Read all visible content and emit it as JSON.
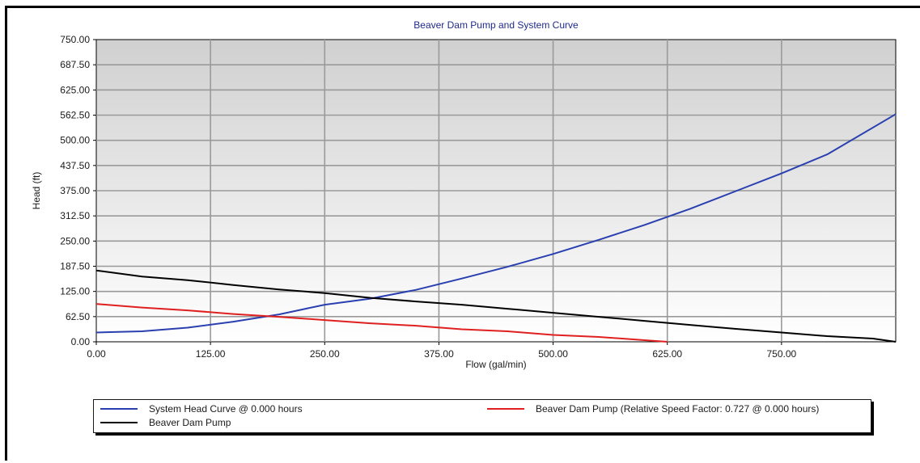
{
  "chart_data": {
    "type": "line",
    "title": "Beaver Dam Pump and System Curve",
    "xlabel": "Flow (gal/min)",
    "ylabel": "Head (ft)",
    "xlim": [
      0,
      875
    ],
    "ylim": [
      0,
      750
    ],
    "x_ticks": [
      "0.00",
      "125.00",
      "250.00",
      "375.00",
      "500.00",
      "625.00",
      "750.00"
    ],
    "x_tick_values": [
      0,
      125,
      250,
      375,
      500,
      625,
      750
    ],
    "y_ticks": [
      "0.00",
      "62.50",
      "125.00",
      "187.50",
      "250.00",
      "312.50",
      "375.00",
      "437.50",
      "500.00",
      "562.50",
      "625.00",
      "687.50",
      "750.00"
    ],
    "y_tick_values": [
      0,
      62.5,
      125,
      187.5,
      250,
      312.5,
      375,
      437.5,
      500,
      562.5,
      625,
      687.5,
      750
    ],
    "grid": true,
    "legend_position": "bottom",
    "series": [
      {
        "name": "System Head Curve @ 0.000 hours",
        "color": "#2a3fb0",
        "x": [
          0,
          50,
          100,
          150,
          200,
          250,
          300,
          350,
          400,
          450,
          500,
          550,
          600,
          650,
          700,
          750,
          800,
          875
        ],
        "y": [
          23,
          26,
          35,
          50,
          68,
          92,
          107,
          129,
          157,
          186,
          218,
          253,
          290,
          330,
          374,
          418,
          465,
          565
        ]
      },
      {
        "name": "Beaver Dam Pump (Relative Speed Factor:  0.727 @ 0.000 hours)",
        "color": "#e02020",
        "x": [
          0,
          50,
          100,
          150,
          200,
          250,
          300,
          350,
          400,
          450,
          500,
          550,
          600,
          625
        ],
        "y": [
          94,
          85,
          78,
          69,
          62,
          54,
          46,
          40,
          31,
          26,
          17,
          12,
          4,
          0
        ]
      },
      {
        "name": "Beaver Dam Pump",
        "color": "#000000",
        "x": [
          0,
          50,
          100,
          150,
          200,
          250,
          300,
          350,
          400,
          450,
          500,
          550,
          600,
          650,
          700,
          750,
          800,
          850,
          875
        ],
        "y": [
          177,
          162,
          153,
          141,
          130,
          121,
          109,
          100,
          92,
          82,
          72,
          62,
          52,
          42,
          32,
          23,
          14,
          8,
          0
        ]
      }
    ]
  },
  "legend": {
    "system_head": "System Head Curve @ 0.000 hours",
    "pump_relative": "Beaver Dam Pump (Relative Speed Factor:  0.727 @ 0.000 hours)",
    "pump": "Beaver Dam Pump"
  }
}
